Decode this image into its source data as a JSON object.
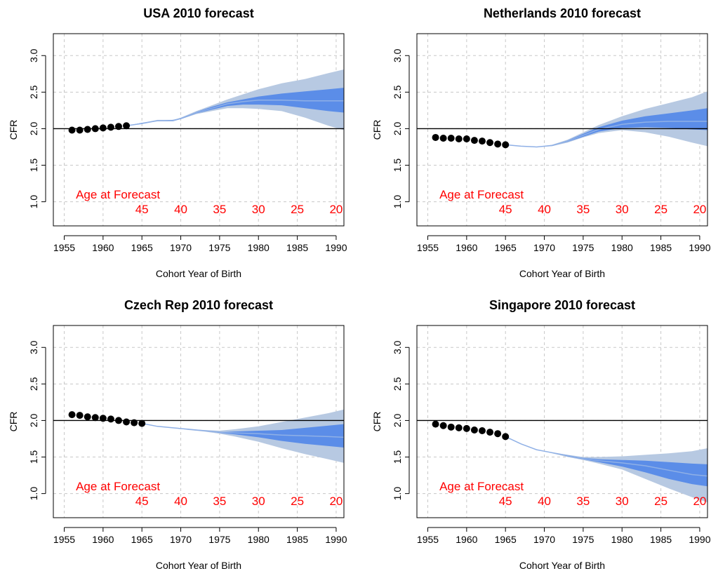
{
  "colors": {
    "outer_band": "#b7c9e2",
    "inner_band": "#5b8de8",
    "median_line": "#8fb0e6",
    "points": "#000000",
    "age_text": "#ff0000",
    "grid": "#c8c8c8",
    "reference_line": "#000000"
  },
  "chart_data": [
    {
      "type": "line",
      "title": "USA 2010 forecast",
      "xlabel": "Cohort Year of Birth",
      "ylabel": "CFR",
      "xlim": [
        1955,
        1991
      ],
      "ylim": [
        0.8,
        3.3
      ],
      "xticks": [
        "1955",
        "1960",
        "1965",
        "1970",
        "1975",
        "1980",
        "1985",
        "1990"
      ],
      "yticks": [
        "1.0",
        "1.5",
        "2.0",
        "2.5",
        "3.0"
      ],
      "grid": true,
      "reference_y": 2.0,
      "age_annotation": {
        "label": "Age at Forecast",
        "ages": [
          {
            "age": "45",
            "year": 1965
          },
          {
            "age": "40",
            "year": 1970
          },
          {
            "age": "35",
            "year": 1975
          },
          {
            "age": "30",
            "year": 1980
          },
          {
            "age": "25",
            "year": 1985
          },
          {
            "age": "20",
            "year": 1990
          }
        ]
      },
      "observed": {
        "x": [
          1956,
          1957,
          1958,
          1959,
          1960,
          1961,
          1962,
          1963
        ],
        "y": [
          1.98,
          1.98,
          1.99,
          2.0,
          2.01,
          2.02,
          2.03,
          2.04
        ]
      },
      "forecast": {
        "x": [
          1963,
          1965,
          1967,
          1969,
          1970,
          1972,
          1974,
          1976,
          1978,
          1980,
          1983,
          1986,
          1989,
          1991
        ],
        "median": [
          2.04,
          2.07,
          2.11,
          2.11,
          2.14,
          2.22,
          2.28,
          2.34,
          2.37,
          2.39,
          2.39,
          2.38,
          2.38,
          2.38
        ],
        "inner_low": [
          2.04,
          2.07,
          2.11,
          2.11,
          2.13,
          2.21,
          2.26,
          2.31,
          2.33,
          2.33,
          2.32,
          2.28,
          2.24,
          2.22
        ],
        "inner_high": [
          2.04,
          2.08,
          2.11,
          2.12,
          2.14,
          2.23,
          2.3,
          2.36,
          2.4,
          2.44,
          2.48,
          2.51,
          2.54,
          2.56
        ],
        "outer_low": [
          2.04,
          2.07,
          2.1,
          2.1,
          2.13,
          2.2,
          2.24,
          2.28,
          2.28,
          2.27,
          2.24,
          2.15,
          2.04,
          1.98
        ],
        "outer_high": [
          2.04,
          2.08,
          2.12,
          2.12,
          2.15,
          2.24,
          2.32,
          2.4,
          2.47,
          2.54,
          2.62,
          2.68,
          2.76,
          2.81
        ]
      }
    },
    {
      "type": "line",
      "title": "Netherlands 2010 forecast",
      "xlabel": "Cohort Year of Birth",
      "ylabel": "CFR",
      "xlim": [
        1955,
        1991
      ],
      "ylim": [
        0.8,
        3.3
      ],
      "xticks": [
        "1955",
        "1960",
        "1965",
        "1970",
        "1975",
        "1980",
        "1985",
        "1990"
      ],
      "yticks": [
        "1.0",
        "1.5",
        "2.0",
        "2.5",
        "3.0"
      ],
      "grid": true,
      "reference_y": 2.0,
      "age_annotation": {
        "label": "Age at Forecast",
        "ages": [
          {
            "age": "45",
            "year": 1965
          },
          {
            "age": "40",
            "year": 1970
          },
          {
            "age": "35",
            "year": 1975
          },
          {
            "age": "30",
            "year": 1980
          },
          {
            "age": "25",
            "year": 1985
          },
          {
            "age": "20",
            "year": 1990
          }
        ]
      },
      "observed": {
        "x": [
          1956,
          1957,
          1958,
          1959,
          1960,
          1961,
          1962,
          1963,
          1964,
          1965
        ],
        "y": [
          1.88,
          1.87,
          1.87,
          1.86,
          1.86,
          1.84,
          1.83,
          1.81,
          1.79,
          1.78
        ]
      },
      "forecast": {
        "x": [
          1965,
          1967,
          1969,
          1971,
          1973,
          1975,
          1977,
          1980,
          1983,
          1986,
          1989,
          1991
        ],
        "median": [
          1.78,
          1.76,
          1.75,
          1.77,
          1.83,
          1.91,
          1.99,
          2.06,
          2.09,
          2.1,
          2.1,
          2.1
        ],
        "inner_low": [
          1.78,
          1.76,
          1.75,
          1.77,
          1.82,
          1.89,
          1.96,
          2.01,
          2.02,
          2.01,
          1.99,
          1.98
        ],
        "inner_high": [
          1.78,
          1.76,
          1.75,
          1.77,
          1.84,
          1.93,
          2.02,
          2.11,
          2.17,
          2.21,
          2.25,
          2.28
        ],
        "outer_low": [
          1.78,
          1.76,
          1.75,
          1.76,
          1.81,
          1.88,
          1.94,
          1.98,
          1.95,
          1.89,
          1.81,
          1.76
        ],
        "outer_high": [
          1.78,
          1.76,
          1.75,
          1.78,
          1.85,
          1.95,
          2.05,
          2.17,
          2.27,
          2.35,
          2.43,
          2.51
        ]
      }
    },
    {
      "type": "line",
      "title": "Czech Rep 2010 forecast",
      "xlabel": "Cohort Year of Birth",
      "ylabel": "CFR",
      "xlim": [
        1955,
        1991
      ],
      "ylim": [
        0.8,
        3.3
      ],
      "xticks": [
        "1955",
        "1960",
        "1965",
        "1970",
        "1975",
        "1980",
        "1985",
        "1990"
      ],
      "yticks": [
        "1.0",
        "1.5",
        "2.0",
        "2.5",
        "3.0"
      ],
      "grid": true,
      "reference_y": 2.0,
      "age_annotation": {
        "label": "Age at Forecast",
        "ages": [
          {
            "age": "45",
            "year": 1965
          },
          {
            "age": "40",
            "year": 1970
          },
          {
            "age": "35",
            "year": 1975
          },
          {
            "age": "30",
            "year": 1980
          },
          {
            "age": "25",
            "year": 1985
          },
          {
            "age": "20",
            "year": 1990
          }
        ]
      },
      "observed": {
        "x": [
          1956,
          1957,
          1958,
          1959,
          1960,
          1961,
          1962,
          1963,
          1964,
          1965
        ],
        "y": [
          2.08,
          2.07,
          2.05,
          2.04,
          2.03,
          2.02,
          2.0,
          1.98,
          1.97,
          1.96
        ]
      },
      "forecast": {
        "x": [
          1965,
          1967,
          1969,
          1971,
          1973,
          1975,
          1977,
          1980,
          1983,
          1986,
          1989,
          1991
        ],
        "median": [
          1.96,
          1.92,
          1.9,
          1.88,
          1.86,
          1.84,
          1.83,
          1.82,
          1.8,
          1.79,
          1.78,
          1.77
        ],
        "inner_low": [
          1.96,
          1.92,
          1.9,
          1.88,
          1.86,
          1.83,
          1.81,
          1.77,
          1.72,
          1.68,
          1.65,
          1.63
        ],
        "inner_high": [
          1.96,
          1.92,
          1.9,
          1.88,
          1.86,
          1.84,
          1.85,
          1.86,
          1.87,
          1.9,
          1.93,
          1.95
        ],
        "outer_low": [
          1.96,
          1.92,
          1.9,
          1.87,
          1.85,
          1.82,
          1.78,
          1.71,
          1.62,
          1.54,
          1.47,
          1.42
        ],
        "outer_high": [
          1.96,
          1.92,
          1.9,
          1.88,
          1.87,
          1.86,
          1.88,
          1.92,
          1.98,
          2.04,
          2.1,
          2.15
        ]
      }
    },
    {
      "type": "line",
      "title": "Singapore 2010 forecast",
      "xlabel": "Cohort Year of Birth",
      "ylabel": "CFR",
      "xlim": [
        1955,
        1991
      ],
      "ylim": [
        0.8,
        3.3
      ],
      "xticks": [
        "1955",
        "1960",
        "1965",
        "1970",
        "1975",
        "1980",
        "1985",
        "1990"
      ],
      "yticks": [
        "1.0",
        "1.5",
        "2.0",
        "2.5",
        "3.0"
      ],
      "grid": true,
      "reference_y": 2.0,
      "age_annotation": {
        "label": "Age at Forecast",
        "ages": [
          {
            "age": "45",
            "year": 1965
          },
          {
            "age": "40",
            "year": 1970
          },
          {
            "age": "35",
            "year": 1975
          },
          {
            "age": "30",
            "year": 1980
          },
          {
            "age": "25",
            "year": 1985
          },
          {
            "age": "20",
            "year": 1990
          }
        ]
      },
      "observed": {
        "x": [
          1956,
          1957,
          1958,
          1959,
          1960,
          1961,
          1962,
          1963,
          1964,
          1965
        ],
        "y": [
          1.95,
          1.93,
          1.91,
          1.9,
          1.89,
          1.87,
          1.86,
          1.84,
          1.82,
          1.78
        ]
      },
      "forecast": {
        "x": [
          1965,
          1967,
          1969,
          1971,
          1973,
          1975,
          1977,
          1980,
          1983,
          1986,
          1989,
          1991
        ],
        "median": [
          1.78,
          1.68,
          1.6,
          1.56,
          1.52,
          1.48,
          1.45,
          1.42,
          1.38,
          1.32,
          1.26,
          1.24
        ],
        "inner_low": [
          1.78,
          1.68,
          1.6,
          1.56,
          1.51,
          1.47,
          1.43,
          1.37,
          1.29,
          1.2,
          1.13,
          1.1
        ],
        "inner_high": [
          1.78,
          1.68,
          1.6,
          1.56,
          1.52,
          1.49,
          1.47,
          1.46,
          1.45,
          1.43,
          1.41,
          1.4
        ],
        "outer_low": [
          1.78,
          1.68,
          1.6,
          1.55,
          1.5,
          1.46,
          1.41,
          1.33,
          1.2,
          1.07,
          0.95,
          0.88
        ],
        "outer_high": [
          1.78,
          1.68,
          1.6,
          1.56,
          1.53,
          1.5,
          1.5,
          1.51,
          1.53,
          1.55,
          1.58,
          1.62
        ]
      }
    }
  ]
}
